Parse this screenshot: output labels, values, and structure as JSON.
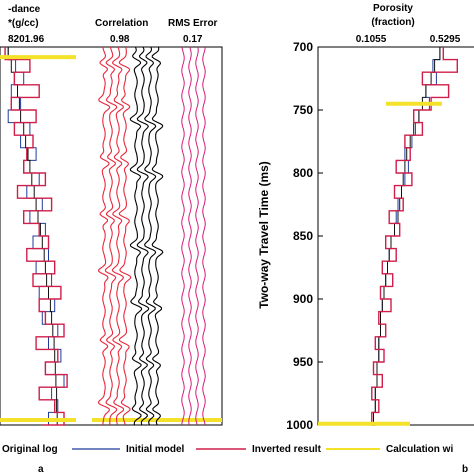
{
  "colors": {
    "original": "#1f3c9c",
    "initial": "#111111",
    "inverted": "#d01e4a",
    "calculation": "#f4e22a",
    "corr_red": "#e8283c",
    "corr_black": "#000000",
    "rms_pink": "#d81b7a"
  },
  "panel_labels": {
    "a": "a",
    "b": "b"
  },
  "legend": [
    {
      "label": "Original log",
      "key": "original"
    },
    {
      "label": "Initial model",
      "key": "initial"
    },
    {
      "label": "Inverted result",
      "key": "inverted"
    },
    {
      "label": "Calculation wi",
      "key": "calculation"
    }
  ],
  "chart_data": [
    {
      "type": "line",
      "panel": "a",
      "track_title": "-dance",
      "track_unit": "*(g/cc)",
      "max_label": "8201.96",
      "ylim": [
        700,
        1000
      ],
      "depth": [
        700,
        710,
        720,
        730,
        740,
        750,
        760,
        770,
        780,
        790,
        800,
        810,
        820,
        830,
        840,
        850,
        860,
        870,
        880,
        890,
        900,
        910,
        920,
        930,
        940,
        950,
        960,
        970,
        980,
        990,
        1000
      ],
      "series": [
        {
          "key": "original",
          "values": [
            0.1,
            0.22,
            0.35,
            0.15,
            0.3,
            0.1,
            0.45,
            0.3,
            0.55,
            0.35,
            0.6,
            0.4,
            0.65,
            0.45,
            0.7,
            0.5,
            0.75,
            0.55,
            0.8,
            0.6,
            0.85,
            0.65,
            0.9,
            0.75,
            0.95,
            0.7,
            1.0,
            0.8,
            0.9,
            0.75,
            0.85
          ]
        },
        {
          "key": "initial",
          "values": [
            0.1,
            0.15,
            0.2,
            0.25,
            0.28,
            0.3,
            0.35,
            0.38,
            0.42,
            0.45,
            0.48,
            0.52,
            0.55,
            0.58,
            0.62,
            0.65,
            0.68,
            0.7,
            0.72,
            0.75,
            0.78,
            0.8,
            0.82,
            0.84,
            0.85,
            0.86,
            0.87,
            0.88,
            0.88,
            0.89,
            0.9
          ]
        },
        {
          "key": "inverted",
          "values": [
            0.05,
            0.45,
            0.2,
            0.6,
            0.15,
            0.55,
            0.2,
            0.5,
            0.4,
            0.35,
            0.7,
            0.25,
            0.8,
            0.35,
            0.6,
            0.75,
            0.4,
            0.85,
            0.5,
            0.95,
            0.6,
            0.7,
            1.0,
            0.55,
            0.9,
            0.7,
            1.05,
            0.6,
            0.85,
            1.0,
            0.65
          ]
        }
      ],
      "calculation_markers": [
        708,
        996
      ]
    },
    {
      "type": "table",
      "panel": "a",
      "title": "Correlation",
      "value": "0.98",
      "trace_columns": [
        {
          "color_key": "corr_red",
          "peaks": [
            715,
            745,
            790,
            835,
            880,
            935,
            985
          ]
        },
        {
          "color_key": "corr_black",
          "peaks": [
            710,
            760,
            800,
            860,
            905,
            950,
            990
          ]
        }
      ]
    },
    {
      "type": "table",
      "panel": "a",
      "title": "RMS Error",
      "value": "0.17",
      "trace_columns": [
        {
          "color_key": "rms_pink",
          "peaks": []
        }
      ]
    },
    {
      "type": "line",
      "panel": "b",
      "title": "Porosity",
      "unit": "(fraction)",
      "xlim": [
        0.1055,
        0.5295
      ],
      "ylabel": "Two-way Travel Time (ms)",
      "ylim": [
        700,
        1000
      ],
      "yticks": [
        700,
        750,
        800,
        850,
        900,
        950,
        1000
      ],
      "depth": [
        700,
        710,
        720,
        730,
        740,
        750,
        760,
        770,
        780,
        790,
        800,
        810,
        820,
        830,
        840,
        850,
        860,
        870,
        880,
        890,
        900,
        910,
        920,
        930,
        940,
        950,
        960,
        970,
        980,
        990,
        1000
      ],
      "series": [
        {
          "key": "original",
          "values": [
            0.5,
            0.46,
            0.48,
            0.42,
            0.44,
            0.38,
            0.36,
            0.34,
            0.3,
            0.32,
            0.3,
            0.28,
            0.26,
            0.25,
            0.24,
            0.22,
            0.21,
            0.2,
            0.19,
            0.18,
            0.17,
            0.16,
            0.16,
            0.15,
            0.15,
            0.14,
            0.14,
            0.13,
            0.13,
            0.12,
            0.12
          ]
        },
        {
          "key": "initial",
          "values": [
            0.5,
            0.47,
            0.45,
            0.42,
            0.4,
            0.38,
            0.35,
            0.33,
            0.31,
            0.3,
            0.29,
            0.28,
            0.27,
            0.26,
            0.24,
            0.22,
            0.21,
            0.2,
            0.19,
            0.18,
            0.17,
            0.16,
            0.16,
            0.15,
            0.15,
            0.14,
            0.14,
            0.13,
            0.13,
            0.12,
            0.12
          ]
        },
        {
          "key": "inverted",
          "values": [
            0.52,
            0.6,
            0.4,
            0.55,
            0.45,
            0.35,
            0.4,
            0.3,
            0.33,
            0.25,
            0.34,
            0.24,
            0.29,
            0.21,
            0.27,
            0.19,
            0.25,
            0.17,
            0.23,
            0.16,
            0.22,
            0.15,
            0.19,
            0.13,
            0.18,
            0.12,
            0.17,
            0.11,
            0.15,
            0.11,
            0.13
          ]
        }
      ],
      "calculation_markers": [
        745,
        999
      ]
    }
  ]
}
